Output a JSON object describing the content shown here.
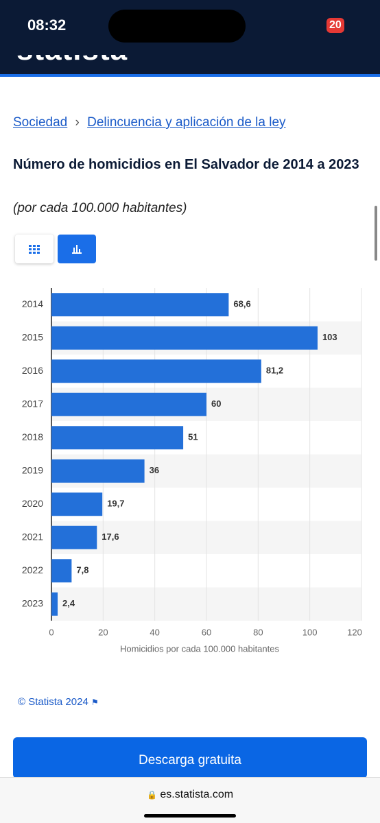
{
  "status_bar": {
    "time": "08:32",
    "battery": "20"
  },
  "header": {
    "logo": "statista"
  },
  "breadcrumb": [
    "Sociedad",
    "Delincuencia y aplicación de la ley"
  ],
  "chart_data": {
    "type": "bar",
    "orientation": "horizontal",
    "title": "Número de homicidios en El Salvador de 2014 a 2023",
    "subtitle": "(por cada 100.000 habitantes)",
    "categories": [
      "2014",
      "2015",
      "2016",
      "2017",
      "2018",
      "2019",
      "2020",
      "2021",
      "2022",
      "2023"
    ],
    "values": [
      68.6,
      103,
      81.2,
      60,
      51,
      36,
      19.7,
      17.6,
      7.8,
      2.4
    ],
    "value_labels": [
      "68,6",
      "103",
      "81,2",
      "60",
      "51",
      "36",
      "19,7",
      "17,6",
      "7,8",
      "2,4"
    ],
    "color": "#2370d9",
    "xlim": [
      0,
      120
    ],
    "xticks": [
      0,
      20,
      40,
      60,
      80,
      100,
      120
    ],
    "xlabel": "Homicidios por cada 100.000 habitantes",
    "grid": true
  },
  "source": "© Statista 2024",
  "button": "Descarga gratuita",
  "url": "es.statista.com"
}
